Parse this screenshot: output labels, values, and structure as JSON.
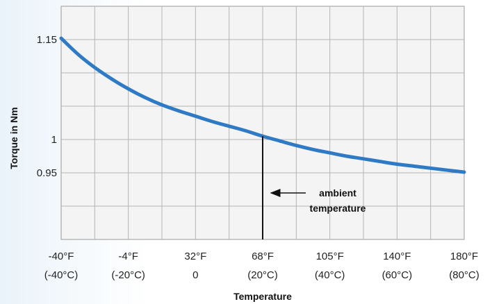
{
  "chart_data": {
    "type": "line",
    "title": "",
    "xlabel": "Temperature",
    "ylabel": "Torque in Nm",
    "x_ticks": [
      {
        "value": -40,
        "label1": "-40°F",
        "label2": "(-40°C)"
      },
      {
        "value": -20,
        "label1": "-4°F",
        "label2": "(-20°C)"
      },
      {
        "value": 0,
        "label1": "32°F",
        "label2": "0"
      },
      {
        "value": 20,
        "label1": "68°F",
        "label2": "(20°C)"
      },
      {
        "value": 40,
        "label1": "105°F",
        "label2": "(40°C)"
      },
      {
        "value": 60,
        "label1": "140°F",
        "label2": "(60°C)"
      },
      {
        "value": 80,
        "label1": "180°F",
        "label2": "(80°C)"
      }
    ],
    "y_ticks": [
      {
        "value": 1.15,
        "label": "1.15"
      },
      {
        "value": 1.0,
        "label": "1"
      },
      {
        "value": 0.95,
        "label": "0.95"
      }
    ],
    "xlim": [
      -40,
      80
    ],
    "ylim": [
      0.85,
      1.2
    ],
    "grid": true,
    "series": [
      {
        "x": [
          -40,
          -35,
          -30,
          -25,
          -20,
          -15,
          -10,
          -5,
          0,
          5,
          10,
          15,
          20,
          25,
          30,
          35,
          40,
          45,
          50,
          55,
          60,
          65,
          70,
          75,
          80
        ],
        "y": [
          1.152,
          1.128,
          1.108,
          1.091,
          1.076,
          1.063,
          1.052,
          1.043,
          1.035,
          1.027,
          1.02,
          1.013,
          1.005,
          0.998,
          0.991,
          0.985,
          0.98,
          0.975,
          0.971,
          0.967,
          0.963,
          0.96,
          0.957,
          0.954,
          0.951
        ],
        "color": "#2f7ac4"
      }
    ],
    "annotation": {
      "x": 20,
      "line1": "ambient",
      "line2": "temperature"
    }
  }
}
